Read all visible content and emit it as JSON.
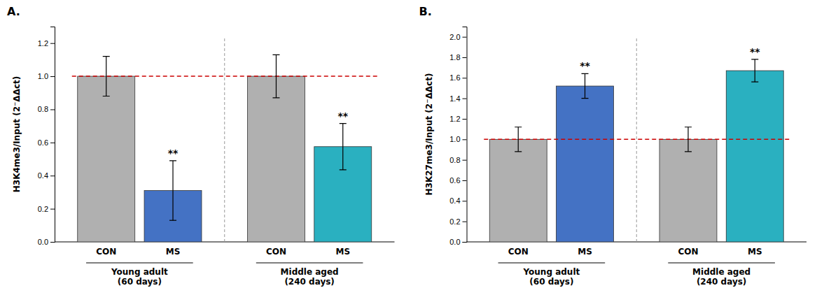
{
  "chart_data": [
    {
      "type": "bar",
      "title": "A.",
      "y_label": "H3K4me3/Input (2⁻ΔΔct)",
      "categories": [
        "CON",
        "MS",
        "CON",
        "MS"
      ],
      "values": [
        1.0,
        0.31,
        1.0,
        0.575
      ],
      "errors": [
        0.12,
        0.18,
        0.13,
        0.14
      ],
      "colors": [
        "#b0b0b0",
        "#4472c4",
        "#b0b0b0",
        "#2ab0c0"
      ],
      "annotations": [
        {
          "text": "**",
          "index": 1
        },
        {
          "text": "**",
          "index": 3
        }
      ],
      "ref_line": {
        "value": 1.0,
        "color": "#cc0000"
      },
      "groups": [
        "Young adult\n(60 days)",
        "Middle aged\n(240 days)"
      ],
      "ylim": [
        0,
        1.3
      ],
      "yticks": [
        {
          "value": 0,
          "label": "0.0"
        },
        0.2,
        0.4,
        0.6,
        0.8,
        {
          "value": 1,
          "label": "1.0"
        },
        1.2
      ],
      "grid": false
    },
    {
      "type": "bar",
      "title": "B.",
      "y_label": "H3K27me3/Input (2⁻ΔΔct)",
      "categories": [
        "CON",
        "MS",
        "CON",
        "MS"
      ],
      "values": [
        1.0,
        1.52,
        1.0,
        1.67
      ],
      "errors": [
        0.12,
        0.12,
        0.12,
        0.11
      ],
      "colors": [
        "#b0b0b0",
        "#4472c4",
        "#b0b0b0",
        "#2ab0c0"
      ],
      "annotations": [
        {
          "text": "**",
          "index": 1
        },
        {
          "text": "**",
          "index": 3
        }
      ],
      "ref_line": {
        "value": 1.0,
        "color": "#cc0000"
      },
      "groups": [
        "Young adult\n(60 days)",
        "Middle aged\n(240 days)"
      ],
      "ylim": [
        0,
        2.1
      ],
      "yticks": [
        {
          "value": 0,
          "label": "0.0"
        },
        0.2,
        0.4,
        0.6,
        0.8,
        {
          "value": 1,
          "label": "1.0"
        },
        1.2,
        1.4,
        1.6,
        1.8,
        {
          "value": 2,
          "label": "2.0"
        }
      ],
      "grid": false
    }
  ]
}
